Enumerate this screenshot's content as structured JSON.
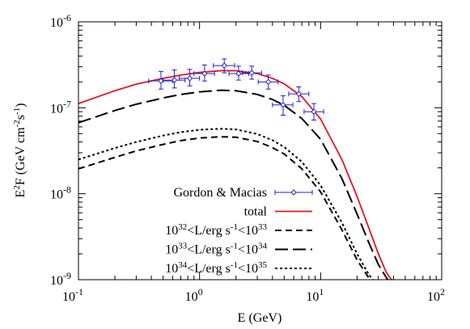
{
  "chart_data": {
    "type": "line",
    "xlabel": "E (GeV)",
    "ylabel": "E<sup>2</sup>F (GeV cm<sup>-2</sup>s<sup>-1</sup>)",
    "x_scale": "log",
    "y_scale": "log",
    "xlim": [
      0.1,
      100
    ],
    "ylim": [
      1e-09,
      1e-06
    ],
    "grid": false,
    "legend_position": "bottom-left",
    "x_ticks": [
      {
        "value": 0.1,
        "base": "10",
        "exp": "-1"
      },
      {
        "value": 1,
        "base": "10",
        "exp": "0"
      },
      {
        "value": 10,
        "base": "10",
        "exp": "1"
      },
      {
        "value": 100,
        "base": "10",
        "exp": "2"
      }
    ],
    "y_ticks": [
      {
        "value": 1e-09,
        "base": "10",
        "exp": "-9"
      },
      {
        "value": 1e-08,
        "base": "10",
        "exp": "-8"
      },
      {
        "value": 1e-07,
        "base": "10",
        "exp": "-7"
      },
      {
        "value": 1e-06,
        "base": "10",
        "exp": "-6"
      }
    ],
    "points_series": {
      "legend_label": "Gordon & Macias",
      "color": "#1f1fd1",
      "points": [
        {
          "x": 0.48,
          "y": 2.05e-07,
          "xlo": 0.38,
          "xhi": 0.6,
          "ylo": 1.65e-07,
          "yhi": 2.65e-07
        },
        {
          "x": 0.62,
          "y": 2.1e-07,
          "xlo": 0.5,
          "xhi": 0.76,
          "ylo": 1.7e-07,
          "yhi": 2.75e-07
        },
        {
          "x": 0.83,
          "y": 2.2e-07,
          "xlo": 0.68,
          "xhi": 1.0,
          "ylo": 1.8e-07,
          "yhi": 2.8e-07
        },
        {
          "x": 1.1,
          "y": 2.5e-07,
          "xlo": 0.9,
          "xhi": 1.33,
          "ylo": 2.05e-07,
          "yhi": 3.15e-07
        },
        {
          "x": 1.6,
          "y": 3.1e-07,
          "xlo": 1.3,
          "xhi": 1.95,
          "ylo": 2.55e-07,
          "yhi": 3.7e-07
        },
        {
          "x": 2.1,
          "y": 2.5e-07,
          "xlo": 1.75,
          "xhi": 2.55,
          "ylo": 2.1e-07,
          "yhi": 3.05e-07
        },
        {
          "x": 2.7,
          "y": 2.55e-07,
          "xlo": 2.25,
          "xhi": 3.25,
          "ylo": 2.15e-07,
          "yhi": 3.05e-07
        },
        {
          "x": 3.7,
          "y": 2e-07,
          "xlo": 3.05,
          "xhi": 4.45,
          "ylo": 1.65e-07,
          "yhi": 2.4e-07
        },
        {
          "x": 4.9,
          "y": 1.08e-07,
          "xlo": 4.0,
          "xhi": 5.9,
          "ylo": 8.2e-08,
          "yhi": 1.38e-07
        },
        {
          "x": 6.6,
          "y": 1.45e-07,
          "xlo": 5.45,
          "xhi": 8.0,
          "ylo": 1.18e-07,
          "yhi": 1.75e-07
        },
        {
          "x": 8.8,
          "y": 9e-08,
          "xlo": 7.3,
          "xhi": 10.6,
          "ylo": 7.2e-08,
          "yhi": 1.12e-07
        }
      ]
    },
    "series": [
      {
        "legend_label": "total",
        "color": "#e8141c",
        "style": "solid",
        "points": [
          [
            0.1,
            1.12e-07
          ],
          [
            0.2,
            1.58e-07
          ],
          [
            0.3,
            1.88e-07
          ],
          [
            0.5,
            2.2e-07
          ],
          [
            0.7,
            2.4e-07
          ],
          [
            1.0,
            2.58e-07
          ],
          [
            1.5,
            2.7e-07
          ],
          [
            2.0,
            2.7e-07
          ],
          [
            3.0,
            2.5e-07
          ],
          [
            4.0,
            2.2e-07
          ],
          [
            5.0,
            1.9e-07
          ],
          [
            7.0,
            1.35e-07
          ],
          [
            10.0,
            7.4e-08
          ],
          [
            15.0,
            2.5e-08
          ],
          [
            20.0,
            9.3e-09
          ],
          [
            25.0,
            4e-09
          ],
          [
            30.0,
            2e-09
          ],
          [
            35.0,
            1.2e-09
          ],
          [
            38.5,
            1e-09
          ]
        ]
      },
      {
        "legend_label": "10<sup>32</sup>&lt;L/erg s<sup>-1</sup>&lt;10<sup>33</sup>",
        "color": "#000000",
        "style": "dash",
        "points": [
          [
            0.1,
            1.95e-08
          ],
          [
            0.2,
            2.65e-08
          ],
          [
            0.3,
            3.15e-08
          ],
          [
            0.5,
            3.75e-08
          ],
          [
            0.7,
            4.15e-08
          ],
          [
            1.0,
            4.45e-08
          ],
          [
            1.5,
            4.6e-08
          ],
          [
            2.0,
            4.55e-08
          ],
          [
            3.0,
            4.05e-08
          ],
          [
            4.0,
            3.45e-08
          ],
          [
            5.0,
            2.9e-08
          ],
          [
            7.0,
            1.95e-08
          ],
          [
            10.0,
            1.05e-08
          ],
          [
            15.0,
            3.8e-09
          ],
          [
            20.0,
            1.7e-09
          ],
          [
            25.0,
            1.05e-09
          ],
          [
            26.0,
            1e-09
          ]
        ]
      },
      {
        "legend_label": "10<sup>33</sup>&lt;L/erg s<sup>-1</sup>&lt;10<sup>34</sup>",
        "color": "#000000",
        "style": "longdash",
        "points": [
          [
            0.1,
            6.7e-08
          ],
          [
            0.2,
            9.3e-08
          ],
          [
            0.3,
            1.1e-07
          ],
          [
            0.5,
            1.3e-07
          ],
          [
            0.7,
            1.43e-07
          ],
          [
            1.0,
            1.53e-07
          ],
          [
            1.5,
            1.6e-07
          ],
          [
            2.0,
            1.58e-07
          ],
          [
            3.0,
            1.43e-07
          ],
          [
            4.0,
            1.25e-07
          ],
          [
            5.0,
            1.07e-07
          ],
          [
            7.0,
            7.5e-08
          ],
          [
            10.0,
            4.3e-08
          ],
          [
            15.0,
            1.5e-08
          ],
          [
            20.0,
            5.8e-09
          ],
          [
            25.0,
            2.7e-09
          ],
          [
            30.0,
            1.5e-09
          ],
          [
            35.0,
            1.05e-09
          ],
          [
            36.0,
            1e-09
          ]
        ]
      },
      {
        "legend_label": "10<sup>34</sup>&lt;L/erg s<sup>-1</sup>&lt;10<sup>35</sup>",
        "color": "#000000",
        "style": "dot",
        "points": [
          [
            0.1,
            2.5e-08
          ],
          [
            0.2,
            3.4e-08
          ],
          [
            0.3,
            4e-08
          ],
          [
            0.5,
            4.75e-08
          ],
          [
            0.7,
            5.2e-08
          ],
          [
            1.0,
            5.55e-08
          ],
          [
            1.5,
            5.7e-08
          ],
          [
            2.0,
            5.6e-08
          ],
          [
            3.0,
            4.95e-08
          ],
          [
            4.0,
            4.2e-08
          ],
          [
            5.0,
            3.5e-08
          ],
          [
            7.0,
            2.35e-08
          ],
          [
            10.0,
            1.25e-08
          ],
          [
            15.0,
            4.6e-09
          ],
          [
            20.0,
            2e-09
          ],
          [
            25.0,
            1.15e-09
          ],
          [
            27.0,
            1e-09
          ]
        ]
      }
    ]
  }
}
